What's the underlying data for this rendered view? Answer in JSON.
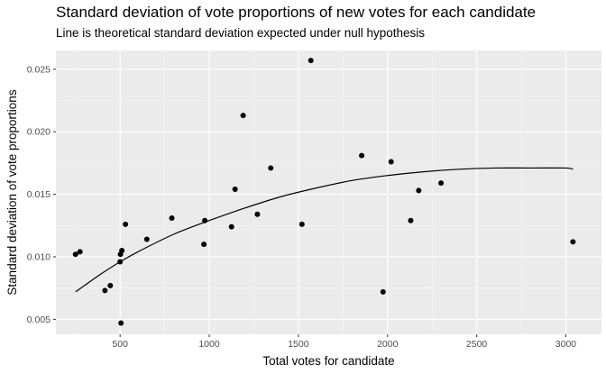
{
  "chart_data": {
    "type": "scatter",
    "title": "Standard deviation of vote proportions of new votes for each candidate",
    "subtitle": "Line is theoretical standard deviation expected under null hypothesis",
    "xlabel": "Total votes for candidate",
    "ylabel": "Standard deviation of vote proportions",
    "xlim": [
      140,
      3200
    ],
    "ylim": [
      0.0038,
      0.0265
    ],
    "x_ticks": [
      500,
      1000,
      1500,
      2000,
      2500,
      3000
    ],
    "x_tick_labels": [
      "500",
      "1000",
      "1500",
      "2000",
      "2500",
      "3000"
    ],
    "y_ticks": [
      0.005,
      0.01,
      0.015,
      0.02,
      0.025
    ],
    "y_tick_labels": [
      "0.005",
      "0.010",
      "0.015",
      "0.020",
      "0.025"
    ],
    "grid": true,
    "background": "#ebebeb",
    "point_color": "#000000",
    "points": [
      {
        "x": 250,
        "y": 0.0102
      },
      {
        "x": 275,
        "y": 0.0104
      },
      {
        "x": 415,
        "y": 0.0073
      },
      {
        "x": 445,
        "y": 0.0077
      },
      {
        "x": 500,
        "y": 0.0096
      },
      {
        "x": 502,
        "y": 0.0102
      },
      {
        "x": 505,
        "y": 0.0047
      },
      {
        "x": 510,
        "y": 0.0105
      },
      {
        "x": 530,
        "y": 0.0126
      },
      {
        "x": 650,
        "y": 0.0114
      },
      {
        "x": 790,
        "y": 0.0131
      },
      {
        "x": 970,
        "y": 0.011
      },
      {
        "x": 975,
        "y": 0.0129
      },
      {
        "x": 1125,
        "y": 0.0124
      },
      {
        "x": 1145,
        "y": 0.0154
      },
      {
        "x": 1190,
        "y": 0.0213
      },
      {
        "x": 1270,
        "y": 0.0134
      },
      {
        "x": 1345,
        "y": 0.0171
      },
      {
        "x": 1520,
        "y": 0.0126
      },
      {
        "x": 1570,
        "y": 0.0257
      },
      {
        "x": 1855,
        "y": 0.0181
      },
      {
        "x": 1975,
        "y": 0.0072
      },
      {
        "x": 2020,
        "y": 0.0176
      },
      {
        "x": 2130,
        "y": 0.0129
      },
      {
        "x": 2175,
        "y": 0.0153
      },
      {
        "x": 2300,
        "y": 0.0159
      },
      {
        "x": 3040,
        "y": 0.0112
      }
    ],
    "curve": [
      {
        "x": 250,
        "y": 0.0072
      },
      {
        "x": 400,
        "y": 0.0087
      },
      {
        "x": 500,
        "y": 0.0096
      },
      {
        "x": 600,
        "y": 0.0104
      },
      {
        "x": 800,
        "y": 0.0118
      },
      {
        "x": 1000,
        "y": 0.0129
      },
      {
        "x": 1200,
        "y": 0.0139
      },
      {
        "x": 1400,
        "y": 0.0148
      },
      {
        "x": 1600,
        "y": 0.0155
      },
      {
        "x": 1800,
        "y": 0.0161
      },
      {
        "x": 2000,
        "y": 0.0165
      },
      {
        "x": 2200,
        "y": 0.0168
      },
      {
        "x": 2400,
        "y": 0.017
      },
      {
        "x": 2600,
        "y": 0.0171
      },
      {
        "x": 2800,
        "y": 0.0171
      },
      {
        "x": 3000,
        "y": 0.0171
      },
      {
        "x": 3040,
        "y": 0.017
      }
    ]
  }
}
